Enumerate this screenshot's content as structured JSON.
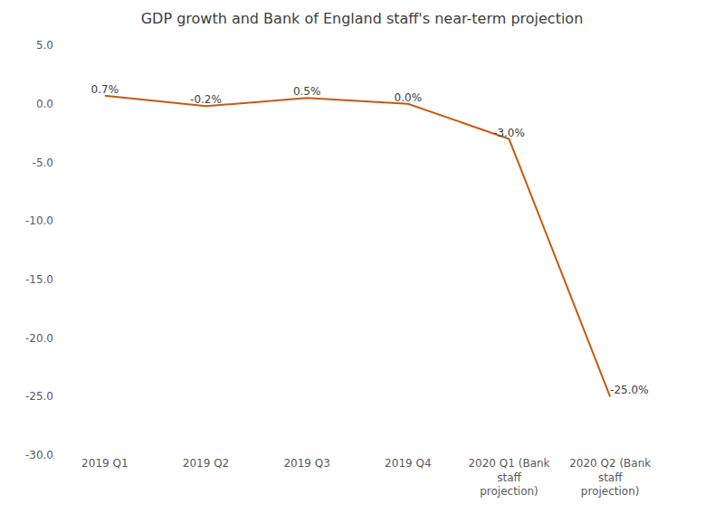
{
  "chart_data": {
    "type": "line",
    "title": "GDP growth and Bank of England staff's near-term projection",
    "categories": [
      "2019 Q1",
      "2019 Q2",
      "2019 Q3",
      "2019 Q4",
      "2020 Q1 (Bank staff projection)",
      "2020 Q2 (Bank staff projection)"
    ],
    "values": [
      0.7,
      -0.2,
      0.5,
      0.0,
      -3.0,
      -25.0
    ],
    "value_labels": [
      "0.7%",
      "-0.2%",
      "0.5%",
      "0.0%",
      "-3.0%",
      "-25.0%"
    ],
    "data_labels": true,
    "color": "#c55a11",
    "ylim": [
      -30,
      5
    ],
    "yticks": [
      {
        "value": -30,
        "label": "-30.0"
      },
      {
        "value": -25,
        "label": "-25.0"
      },
      {
        "value": -20,
        "label": "-20.0"
      },
      {
        "value": -15,
        "label": "-15.0"
      },
      {
        "value": -10,
        "label": "-10.0"
      },
      {
        "value": -5,
        "label": "-5.0"
      },
      {
        "value": 0,
        "label": "0.0"
      },
      {
        "value": 5,
        "label": "5.0"
      }
    ],
    "grid": false
  }
}
